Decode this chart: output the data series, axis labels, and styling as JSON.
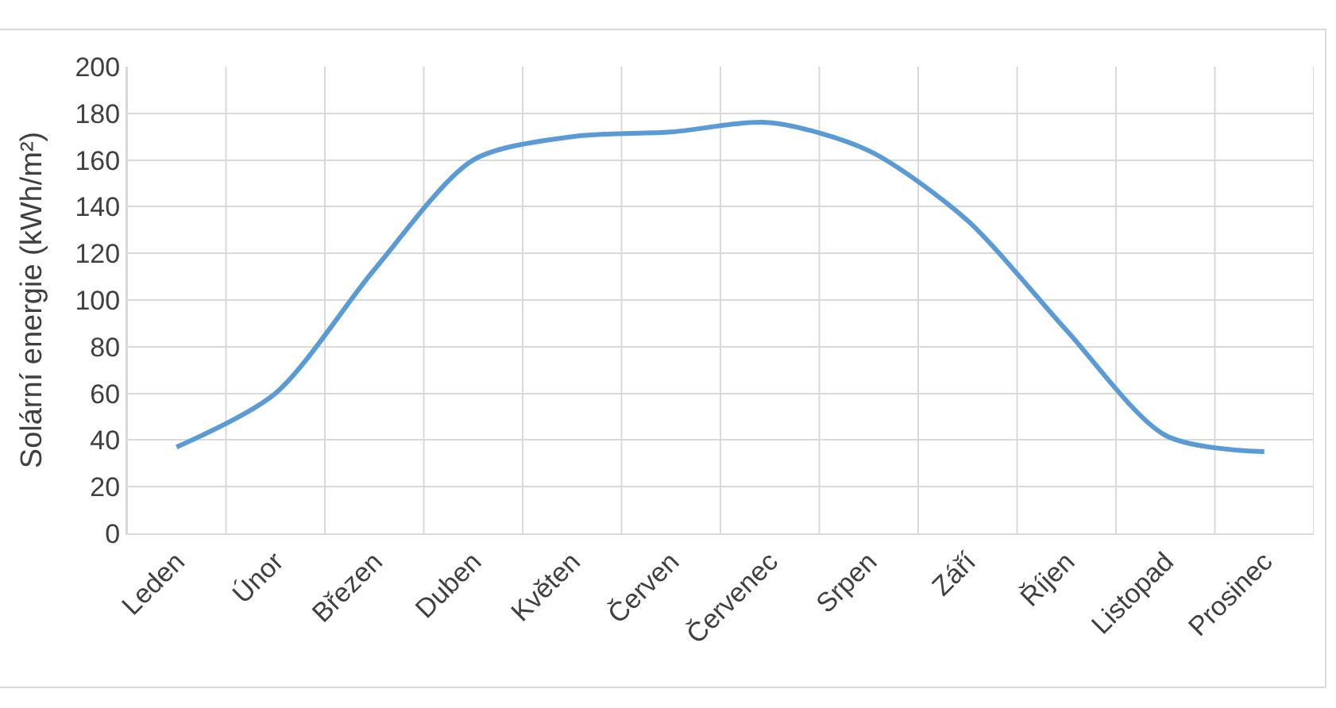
{
  "chart_data": {
    "type": "line",
    "ylabel": "Solární energie (kWh/m²)",
    "categories": [
      "Leden",
      "Únor",
      "Březen",
      "Duben",
      "Květen",
      "Červen",
      "Červenec",
      "Srpen",
      "Září",
      "Říjen",
      "Listopad",
      "Prosinec"
    ],
    "series": [
      {
        "color": "#5b9bd5",
        "values": [
          37,
          60,
          113,
          160,
          170,
          172,
          176,
          164,
          134,
          87,
          42,
          35
        ]
      }
    ],
    "ylim": [
      0,
      200
    ],
    "yticks": [
      0,
      20,
      40,
      60,
      80,
      100,
      120,
      140,
      160,
      180,
      200
    ],
    "grid": true,
    "legend": false,
    "marker": "none",
    "line_style": "solid"
  }
}
